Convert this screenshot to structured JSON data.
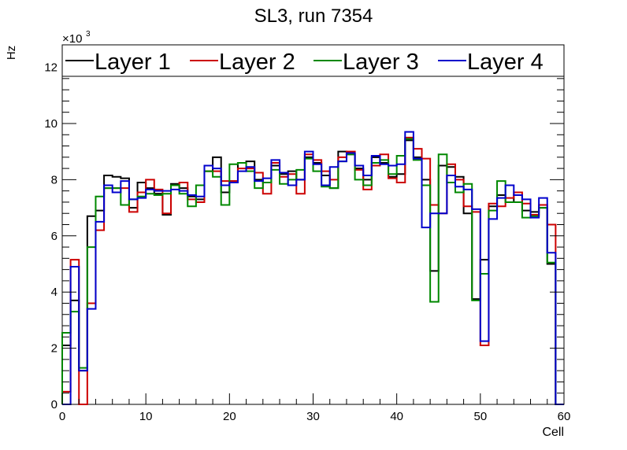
{
  "chart_data": {
    "type": "line",
    "style": "step-histogram",
    "title": "SL3, run 7354",
    "xlabel": "Cell",
    "ylabel": "Hz",
    "y_exponent_label": "×10",
    "y_exponent": "3",
    "xlim": [
      0,
      60
    ],
    "ylim": [
      0,
      12800
    ],
    "x_ticks": [
      0,
      10,
      20,
      30,
      40,
      50,
      60
    ],
    "x_tick_labels": [
      "0",
      "10",
      "20",
      "30",
      "40",
      "50",
      "60"
    ],
    "y_ticks": [
      0,
      2000,
      4000,
      6000,
      8000,
      10000,
      12000
    ],
    "y_tick_labels": [
      "0",
      "2",
      "4",
      "6",
      "8",
      "10",
      "12"
    ],
    "grid": false,
    "legend_position": "top",
    "bin_edges_start": 0,
    "bin_width": 1,
    "series": [
      {
        "name": "Layer 1",
        "color": "#000000",
        "values": [
          2100,
          3700,
          1200,
          6700,
          6900,
          8150,
          8100,
          8050,
          7000,
          7900,
          7700,
          7500,
          6750,
          7850,
          7700,
          7400,
          7300,
          8300,
          8800,
          7550,
          7950,
          8600,
          8650,
          8000,
          7900,
          8500,
          8200,
          8300,
          8000,
          8800,
          8600,
          8150,
          7700,
          9000,
          8900,
          8400,
          8000,
          8800,
          8600,
          8100,
          8200,
          9400,
          8800,
          8000,
          4750,
          8500,
          8450,
          8100,
          6800,
          3750,
          5150,
          7050,
          7450,
          7200,
          7450,
          6900,
          6850,
          7000,
          5000,
          0
        ]
      },
      {
        "name": "Layer 2",
        "color": "#cc0000",
        "values": [
          450,
          5150,
          0,
          3600,
          6200,
          7700,
          7700,
          7700,
          6850,
          7550,
          8000,
          7650,
          6800,
          7800,
          7900,
          7300,
          7200,
          8300,
          8300,
          7950,
          7950,
          8400,
          8400,
          8250,
          7500,
          8600,
          8100,
          8200,
          7500,
          8900,
          8700,
          8300,
          8000,
          8800,
          9000,
          8350,
          7650,
          8500,
          8900,
          8050,
          7900,
          9500,
          9100,
          8750,
          7100,
          6800,
          8550,
          8000,
          7050,
          6850,
          2100,
          7150,
          7050,
          7350,
          7550,
          7150,
          6750,
          7100,
          6400,
          0
        ]
      },
      {
        "name": "Layer 3",
        "color": "#008800",
        "values": [
          2550,
          3300,
          1300,
          5600,
          7400,
          7700,
          7700,
          7100,
          7300,
          7400,
          7500,
          7450,
          7500,
          7800,
          7500,
          7050,
          7800,
          8300,
          8100,
          7100,
          8550,
          8600,
          8300,
          7700,
          7900,
          8350,
          7850,
          8000,
          8350,
          8750,
          8300,
          7750,
          7700,
          8650,
          8900,
          8000,
          7800,
          8600,
          8700,
          8200,
          8850,
          9450,
          8700,
          7800,
          3650,
          8900,
          7900,
          7550,
          7850,
          3700,
          4650,
          6900,
          7950,
          7200,
          7200,
          6650,
          6700,
          7000,
          5050,
          0
        ]
      },
      {
        "name": "Layer 4",
        "color": "#0000cc",
        "values": [
          0,
          4900,
          1200,
          3400,
          6500,
          7800,
          7550,
          7950,
          7300,
          7350,
          7650,
          7600,
          7600,
          7650,
          7600,
          7450,
          7400,
          8500,
          8400,
          7800,
          7900,
          8300,
          8450,
          7950,
          8050,
          8700,
          8250,
          7800,
          8000,
          9000,
          8550,
          7800,
          8450,
          8650,
          8950,
          8500,
          8150,
          8850,
          8550,
          8500,
          8550,
          9700,
          8750,
          6300,
          6800,
          6800,
          8150,
          7750,
          7650,
          6950,
          2250,
          6600,
          7350,
          7800,
          7450,
          7300,
          6650,
          7350,
          5400,
          0
        ]
      }
    ]
  }
}
